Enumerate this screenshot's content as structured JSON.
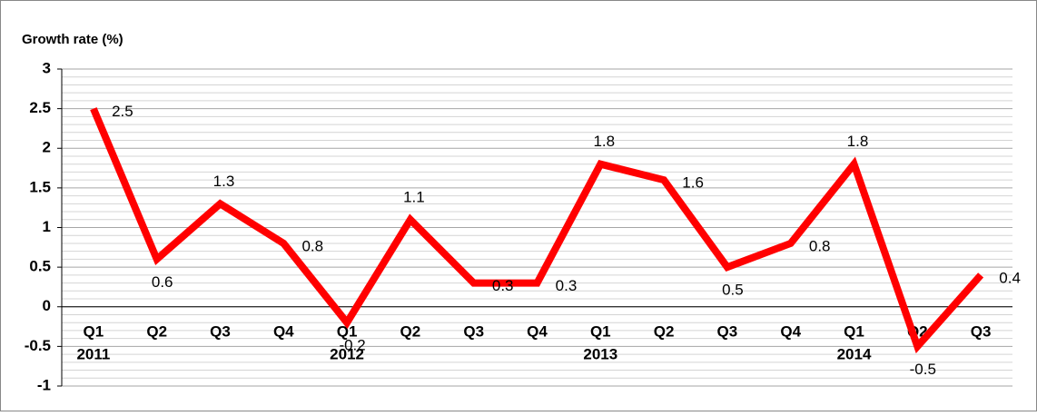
{
  "chart_data": {
    "type": "line",
    "title": "Growth rate (%)",
    "categories": [
      "Q1",
      "Q2",
      "Q3",
      "Q4",
      "Q1",
      "Q2",
      "Q3",
      "Q4",
      "Q1",
      "Q2",
      "Q3",
      "Q4",
      "Q1",
      "Q2",
      "Q3"
    ],
    "years": [
      "2011",
      null,
      null,
      null,
      "2012",
      null,
      null,
      null,
      "2013",
      null,
      null,
      null,
      "2014",
      null,
      null
    ],
    "values": [
      2.5,
      0.6,
      1.3,
      0.8,
      -0.2,
      1.1,
      0.3,
      0.3,
      1.8,
      1.6,
      0.5,
      0.8,
      1.8,
      -0.5,
      0.4
    ],
    "color": "#ff0000",
    "ylim": [
      -1,
      3
    ],
    "yticks": [
      -1,
      -0.5,
      0,
      0.5,
      1,
      1.5,
      2,
      2.5,
      3
    ],
    "grid": true,
    "minor_grid": true,
    "data_labels": true
  }
}
